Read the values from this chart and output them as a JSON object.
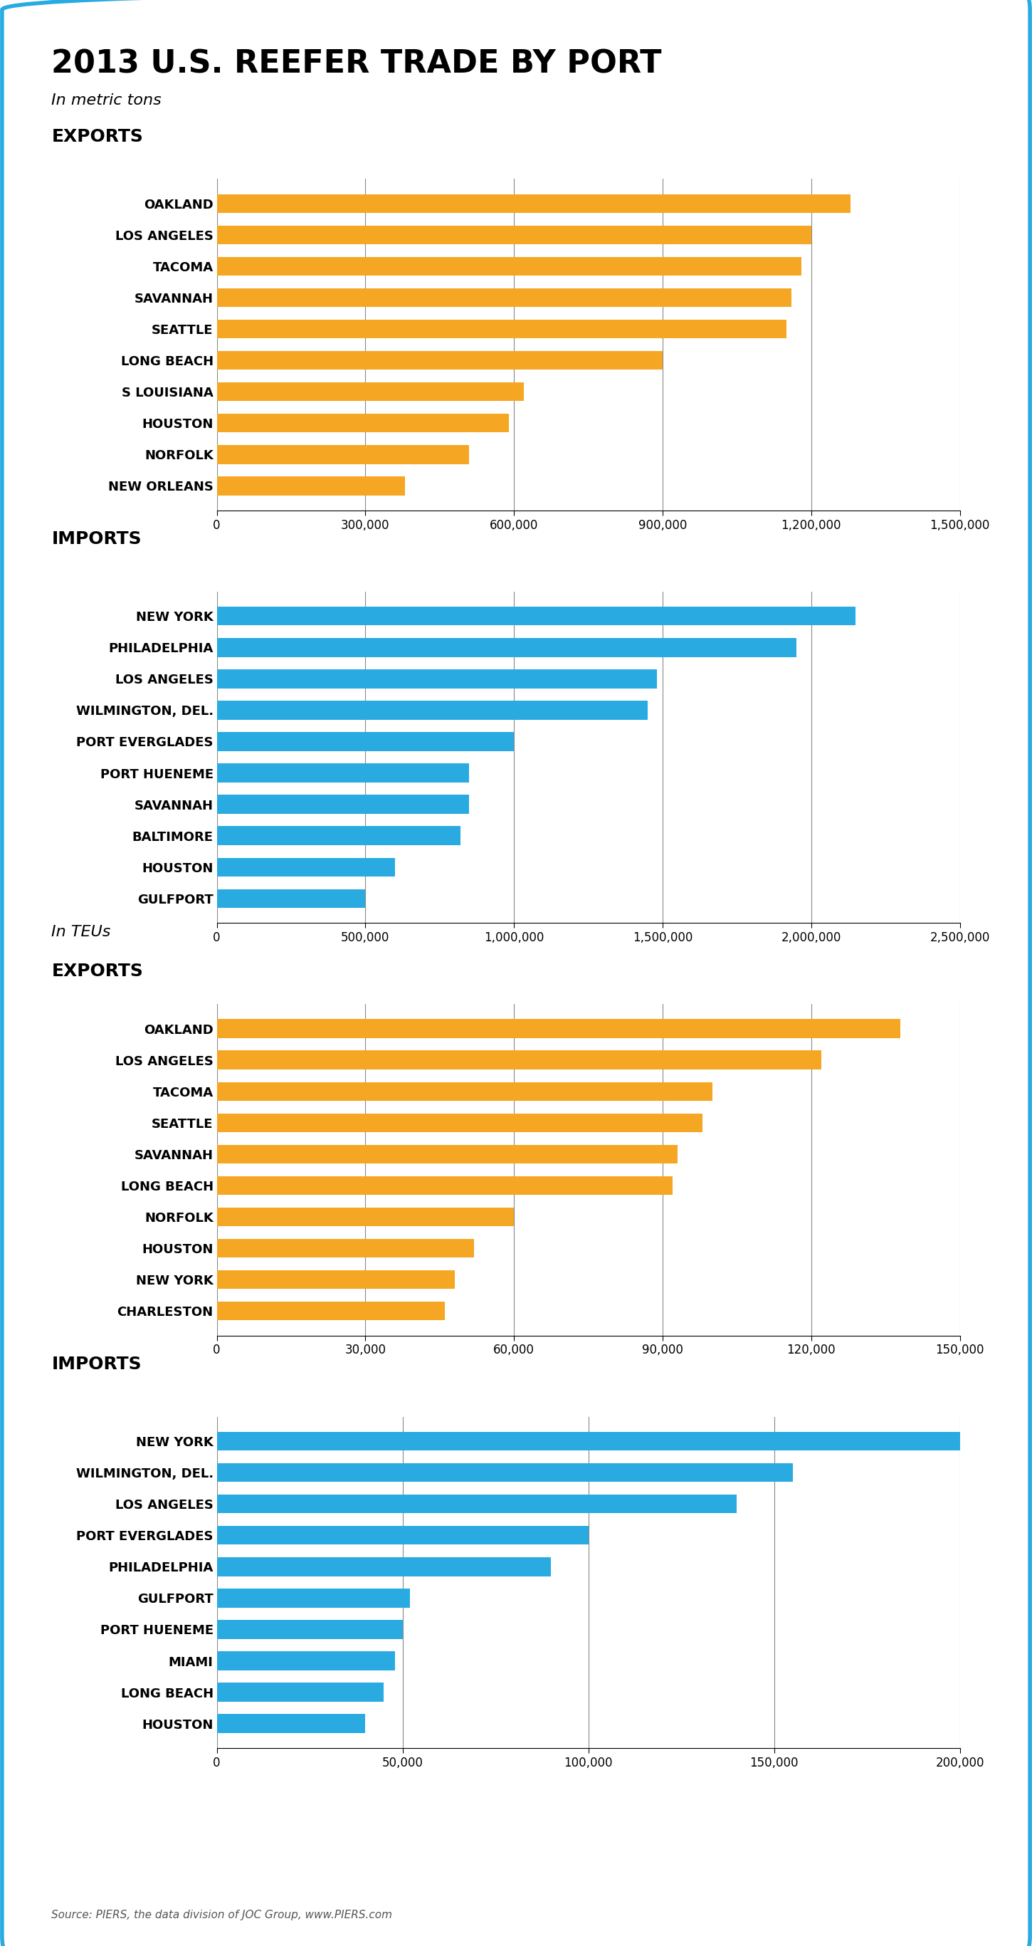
{
  "title": "2013 U.S. REEFER TRADE BY PORT",
  "background_color": "#ffffff",
  "border_color": "#29abe2",
  "orange_color": "#f5a623",
  "blue_color": "#29abe2",
  "metric_tons_exports": {
    "labels": [
      "OAKLAND",
      "LOS ANGELES",
      "TACOMA",
      "SAVANNAH",
      "SEATTLE",
      "LONG BEACH",
      "S LOUISIANA",
      "HOUSTON",
      "NORFOLK",
      "NEW ORLEANS"
    ],
    "values": [
      1280000,
      1200000,
      1180000,
      1160000,
      1150000,
      900000,
      620000,
      590000,
      510000,
      380000
    ]
  },
  "metric_tons_exports_xlim": [
    0,
    1500000
  ],
  "metric_tons_exports_xticks": [
    0,
    300000,
    600000,
    900000,
    1200000,
    1500000
  ],
  "metric_tons_exports_xticklabels": [
    "0",
    "300,000",
    "600,000",
    "900,000",
    "1,200,000",
    "1,500,000"
  ],
  "metric_tons_imports": {
    "labels": [
      "NEW YORK",
      "PHILADELPHIA",
      "LOS ANGELES",
      "WILMINGTON, DEL.",
      "PORT EVERGLADES",
      "PORT HUENEME",
      "SAVANNAH",
      "BALTIMORE",
      "HOUSTON",
      "GULFPORT"
    ],
    "values": [
      2150000,
      1950000,
      1480000,
      1450000,
      1000000,
      850000,
      850000,
      820000,
      600000,
      500000
    ]
  },
  "metric_tons_imports_xlim": [
    0,
    2500000
  ],
  "metric_tons_imports_xticks": [
    0,
    500000,
    1000000,
    1500000,
    2000000,
    2500000
  ],
  "metric_tons_imports_xticklabels": [
    "0",
    "500,000",
    "1,000,000",
    "1,500,000",
    "2,000,000",
    "2,500,000"
  ],
  "teus_exports": {
    "labels": [
      "OAKLAND",
      "LOS ANGELES",
      "TACOMA",
      "SEATTLE",
      "SAVANNAH",
      "LONG BEACH",
      "NORFOLK",
      "HOUSTON",
      "NEW YORK",
      "CHARLESTON"
    ],
    "values": [
      138000,
      122000,
      100000,
      98000,
      93000,
      92000,
      60000,
      52000,
      48000,
      46000
    ]
  },
  "teus_exports_xlim": [
    0,
    150000
  ],
  "teus_exports_xticks": [
    0,
    30000,
    60000,
    90000,
    120000,
    150000
  ],
  "teus_exports_xticklabels": [
    "0",
    "30,000",
    "60,000",
    "90,000",
    "120,000",
    "150,000"
  ],
  "teus_imports": {
    "labels": [
      "NEW YORK",
      "WILMINGTON, DEL.",
      "LOS ANGELES",
      "PORT EVERGLADES",
      "PHILADELPHIA",
      "GULFPORT",
      "PORT HUENEME",
      "MIAMI",
      "LONG BEACH",
      "HOUSTON"
    ],
    "values": [
      200000,
      155000,
      140000,
      100000,
      90000,
      52000,
      50000,
      48000,
      45000,
      40000
    ]
  },
  "teus_imports_xlim": [
    0,
    200000
  ],
  "teus_imports_xticks": [
    0,
    50000,
    100000,
    150000,
    200000
  ],
  "teus_imports_xticklabels": [
    "0",
    "50,000",
    "100,000",
    "150,000",
    "200,000"
  ],
  "source_text": "Source: PIERS, the data division of JOC Group, www.PIERS.com"
}
